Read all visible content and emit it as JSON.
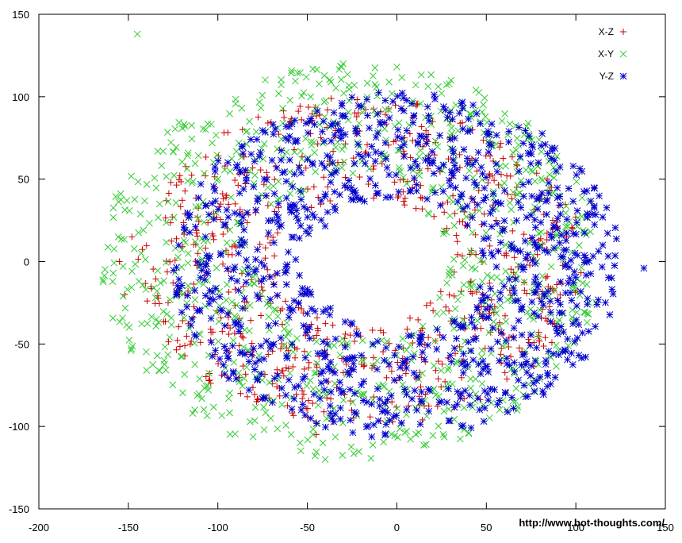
{
  "chart_data": {
    "type": "scatter",
    "title": "",
    "xlabel": "",
    "ylabel": "",
    "xlim": [
      -200,
      150
    ],
    "ylim": [
      -150,
      150
    ],
    "x_ticks": [
      -200,
      -150,
      -100,
      -50,
      0,
      50,
      100,
      150
    ],
    "y_ticks": [
      -150,
      -100,
      -50,
      0,
      50,
      100,
      150
    ],
    "grid": false,
    "legend_position": "top-right",
    "series": [
      {
        "name": "X-Z",
        "marker": "plus",
        "color": "#cc0000",
        "cloud": {
          "cx": -20,
          "cy": 0,
          "rx": 125,
          "ry": 100,
          "count": 700
        },
        "points": [
          [
            -155,
            0
          ],
          [
            -152,
            -20
          ],
          [
            -148,
            15
          ],
          [
            -45,
            -105
          ],
          [
            20,
            85
          ]
        ]
      },
      {
        "name": "X-Y",
        "marker": "cross",
        "color": "#33cc33",
        "cloud": {
          "cx": -25,
          "cy": 0,
          "rx": 140,
          "ry": 120,
          "count": 900
        },
        "points": [
          [
            -145,
            138
          ],
          [
            -30,
            120
          ],
          [
            0,
            118
          ],
          [
            -40,
            -120
          ],
          [
            -130,
            -60
          ]
        ]
      },
      {
        "name": "Y-Z",
        "marker": "star",
        "color": "#0000cc",
        "cloud": {
          "cx": 0,
          "cy": -2,
          "rx": 125,
          "ry": 105,
          "count": 1000
        },
        "points": [
          [
            138,
            -4
          ],
          [
            120,
            -10
          ],
          [
            115,
            10
          ],
          [
            80,
            -70
          ],
          [
            -110,
            -30
          ]
        ]
      }
    ]
  },
  "footer": {
    "url": "http://www.bot-thoughts.com/"
  }
}
